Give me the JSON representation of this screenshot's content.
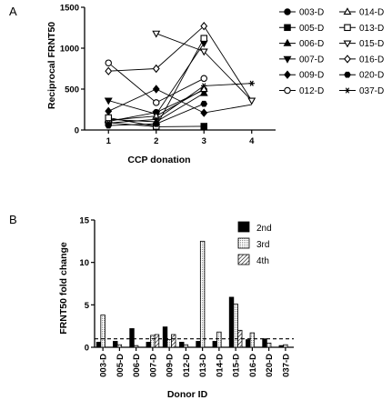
{
  "chart_data": [
    {
      "panel": "A",
      "type": "line",
      "xlabel": "CCP donation",
      "ylabel": "Reciprocal FRNT50",
      "xlim": [
        0.5,
        4.5
      ],
      "ylim": [
        0,
        1500
      ],
      "xticks": [
        "1",
        "2",
        "3",
        "4"
      ],
      "yticks": [
        "0",
        "500",
        "1000",
        "1500"
      ],
      "legend_position": "right",
      "series": [
        {
          "name": "003-D",
          "marker": "circle-filled",
          "x": [
            1,
            2,
            3
          ],
          "y": [
            105,
            215,
            490
          ]
        },
        {
          "name": "005-D",
          "marker": "square-filled",
          "x": [
            1,
            2,
            3
          ],
          "y": [
            90,
            40,
            45
          ]
        },
        {
          "name": "006-D",
          "marker": "triangle-up-filled",
          "x": [
            1,
            2,
            3
          ],
          "y": [
            130,
            100,
            450
          ]
        },
        {
          "name": "007-D",
          "marker": "triangle-down-filled",
          "x": [
            1,
            2,
            3
          ],
          "y": [
            360,
            195,
            1060
          ]
        },
        {
          "name": "009-D",
          "marker": "diamond-filled",
          "x": [
            1,
            2,
            3
          ],
          "y": [
            230,
            500,
            210
          ]
        },
        {
          "name": "012-D",
          "marker": "circle-open",
          "x": [
            1,
            2,
            3
          ],
          "y": [
            820,
            335,
            630
          ]
        },
        {
          "name": "014-D",
          "marker": "triangle-up-open",
          "x": [
            1,
            2,
            3
          ],
          "y": [
            120,
            170,
            500
          ]
        },
        {
          "name": "013-D",
          "marker": "square-open",
          "x": [
            1,
            2,
            3
          ],
          "y": [
            150,
            45,
            1120
          ]
        },
        {
          "name": "015-D",
          "marker": "triangle-down-open",
          "x": [
            2,
            3,
            4
          ],
          "y": [
            1180,
            960,
            360
          ]
        },
        {
          "name": "016-D",
          "marker": "diamond-open",
          "x": [
            1,
            2,
            3
          ],
          "y": [
            720,
            750,
            1270
          ]
        },
        {
          "name": "020-D",
          "marker": "hexagon-filled",
          "x": [
            1,
            2,
            3
          ],
          "y": [
            55,
            75,
            320
          ]
        },
        {
          "name": "037-D",
          "marker": "star",
          "x": [
            1,
            2,
            3,
            4
          ],
          "y": [
            85,
            130,
            540,
            570
          ]
        }
      ],
      "extra_segments": [
        {
          "name": "009-D",
          "x": [
            3,
            4
          ],
          "y": [
            210,
            310
          ]
        },
        {
          "name": "016-D",
          "x": [
            3,
            4
          ],
          "y": [
            1270,
            360
          ]
        }
      ]
    },
    {
      "panel": "B",
      "type": "bar",
      "xlabel": "Donor ID",
      "ylabel": "FRNT50 fold change",
      "ylim": [
        0,
        15
      ],
      "yticks": [
        "0",
        "5",
        "10",
        "15"
      ],
      "reference_line": 1,
      "legend_position": "top-right",
      "categories": [
        "003-D",
        "005-D",
        "006-D",
        "007-D",
        "009-D",
        "012-D",
        "013-D",
        "014-D",
        "015-D",
        "016-D",
        "020-D",
        "037-D"
      ],
      "series": [
        {
          "name": "2nd",
          "pattern": "solid-black",
          "values": [
            0.6,
            0.7,
            2.2,
            0.6,
            2.4,
            0.6,
            0.7,
            0.7,
            5.9,
            0.9,
            1.0,
            0.2
          ]
        },
        {
          "name": "3rd",
          "pattern": "dotted",
          "values": [
            3.8,
            0.3,
            0.2,
            1.4,
            0.9,
            0.3,
            12.5,
            1.8,
            5.1,
            1.7,
            0.5,
            0.3
          ]
        },
        {
          "name": "4th",
          "pattern": "hatched",
          "values": [
            null,
            null,
            null,
            1.5,
            1.5,
            null,
            null,
            null,
            2.0,
            null,
            null,
            null
          ]
        }
      ]
    }
  ],
  "panel_labels": [
    "A",
    "B"
  ],
  "colors": {
    "ink": "#000000",
    "dotted_fill": "#b9b9b9",
    "background": "#ffffff"
  }
}
